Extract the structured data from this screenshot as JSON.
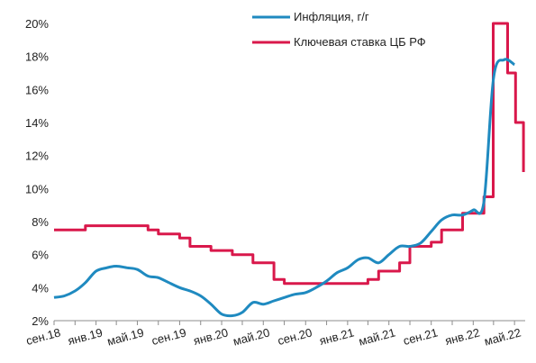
{
  "chart_data": {
    "type": "line",
    "title": "",
    "xlabel": "",
    "ylabel": "",
    "ylim": [
      2,
      20
    ],
    "y_ticks": [
      "2%",
      "4%",
      "6%",
      "8%",
      "10%",
      "12%",
      "14%",
      "16%",
      "18%",
      "20%"
    ],
    "x_tick_labels": [
      "сен.18",
      "янв.19",
      "май.19",
      "сен.19",
      "янв.20",
      "май.20",
      "сен.20",
      "янв.21",
      "май.21",
      "сен.21",
      "янв.22",
      "май.22"
    ],
    "grid": false,
    "legend_position": "top-right",
    "series": [
      {
        "name": "Инфляция, г/г",
        "color": "#1F8AC0",
        "style": "smooth",
        "points": [
          [
            "2018-09",
            3.4
          ],
          [
            "2018-10",
            3.5
          ],
          [
            "2018-11",
            3.8
          ],
          [
            "2018-12",
            4.3
          ],
          [
            "2019-01",
            5.0
          ],
          [
            "2019-02",
            5.2
          ],
          [
            "2019-03",
            5.3
          ],
          [
            "2019-04",
            5.2
          ],
          [
            "2019-05",
            5.1
          ],
          [
            "2019-06",
            4.7
          ],
          [
            "2019-07",
            4.6
          ],
          [
            "2019-08",
            4.3
          ],
          [
            "2019-09",
            4.0
          ],
          [
            "2019-10",
            3.8
          ],
          [
            "2019-11",
            3.5
          ],
          [
            "2019-12",
            3.0
          ],
          [
            "2020-01",
            2.4
          ],
          [
            "2020-02",
            2.3
          ],
          [
            "2020-03",
            2.5
          ],
          [
            "2020-04",
            3.1
          ],
          [
            "2020-05",
            3.0
          ],
          [
            "2020-06",
            3.2
          ],
          [
            "2020-07",
            3.4
          ],
          [
            "2020-08",
            3.6
          ],
          [
            "2020-09",
            3.7
          ],
          [
            "2020-10",
            4.0
          ],
          [
            "2020-11",
            4.4
          ],
          [
            "2020-12",
            4.9
          ],
          [
            "2021-01",
            5.2
          ],
          [
            "2021-02",
            5.7
          ],
          [
            "2021-03",
            5.8
          ],
          [
            "2021-04",
            5.5
          ],
          [
            "2021-05",
            6.0
          ],
          [
            "2021-06",
            6.5
          ],
          [
            "2021-07",
            6.5
          ],
          [
            "2021-08",
            6.7
          ],
          [
            "2021-09",
            7.4
          ],
          [
            "2021-10",
            8.1
          ],
          [
            "2021-11",
            8.4
          ],
          [
            "2021-12",
            8.4
          ],
          [
            "2022-01",
            8.7
          ],
          [
            "2022-02",
            9.2
          ],
          [
            "2022-03",
            16.7
          ],
          [
            "2022-04",
            17.8
          ],
          [
            "2022-05",
            17.5
          ]
        ]
      },
      {
        "name": "Ключевая ставка ЦБ РФ",
        "color": "#D9184B",
        "style": "step",
        "points": [
          [
            "2018-09",
            7.5
          ],
          [
            "2018-12",
            7.75
          ],
          [
            "2019-06",
            7.5
          ],
          [
            "2019-07",
            7.25
          ],
          [
            "2019-09",
            7.0
          ],
          [
            "2019-10",
            6.5
          ],
          [
            "2019-12",
            6.25
          ],
          [
            "2020-02",
            6.0
          ],
          [
            "2020-04",
            5.5
          ],
          [
            "2020-06",
            4.5
          ],
          [
            "2020-07",
            4.25
          ],
          [
            "2021-03",
            4.5
          ],
          [
            "2021-04",
            5.0
          ],
          [
            "2021-06",
            5.5
          ],
          [
            "2021-07",
            6.5
          ],
          [
            "2021-09",
            6.75
          ],
          [
            "2021-10",
            7.5
          ],
          [
            "2021-12",
            8.5
          ],
          [
            "2022-02",
            9.5
          ],
          [
            "2022-02-28",
            20.0
          ],
          [
            "2022-04-11",
            17.0
          ],
          [
            "2022-05-04",
            14.0
          ],
          [
            "2022-05-27",
            11.0
          ]
        ]
      }
    ]
  }
}
